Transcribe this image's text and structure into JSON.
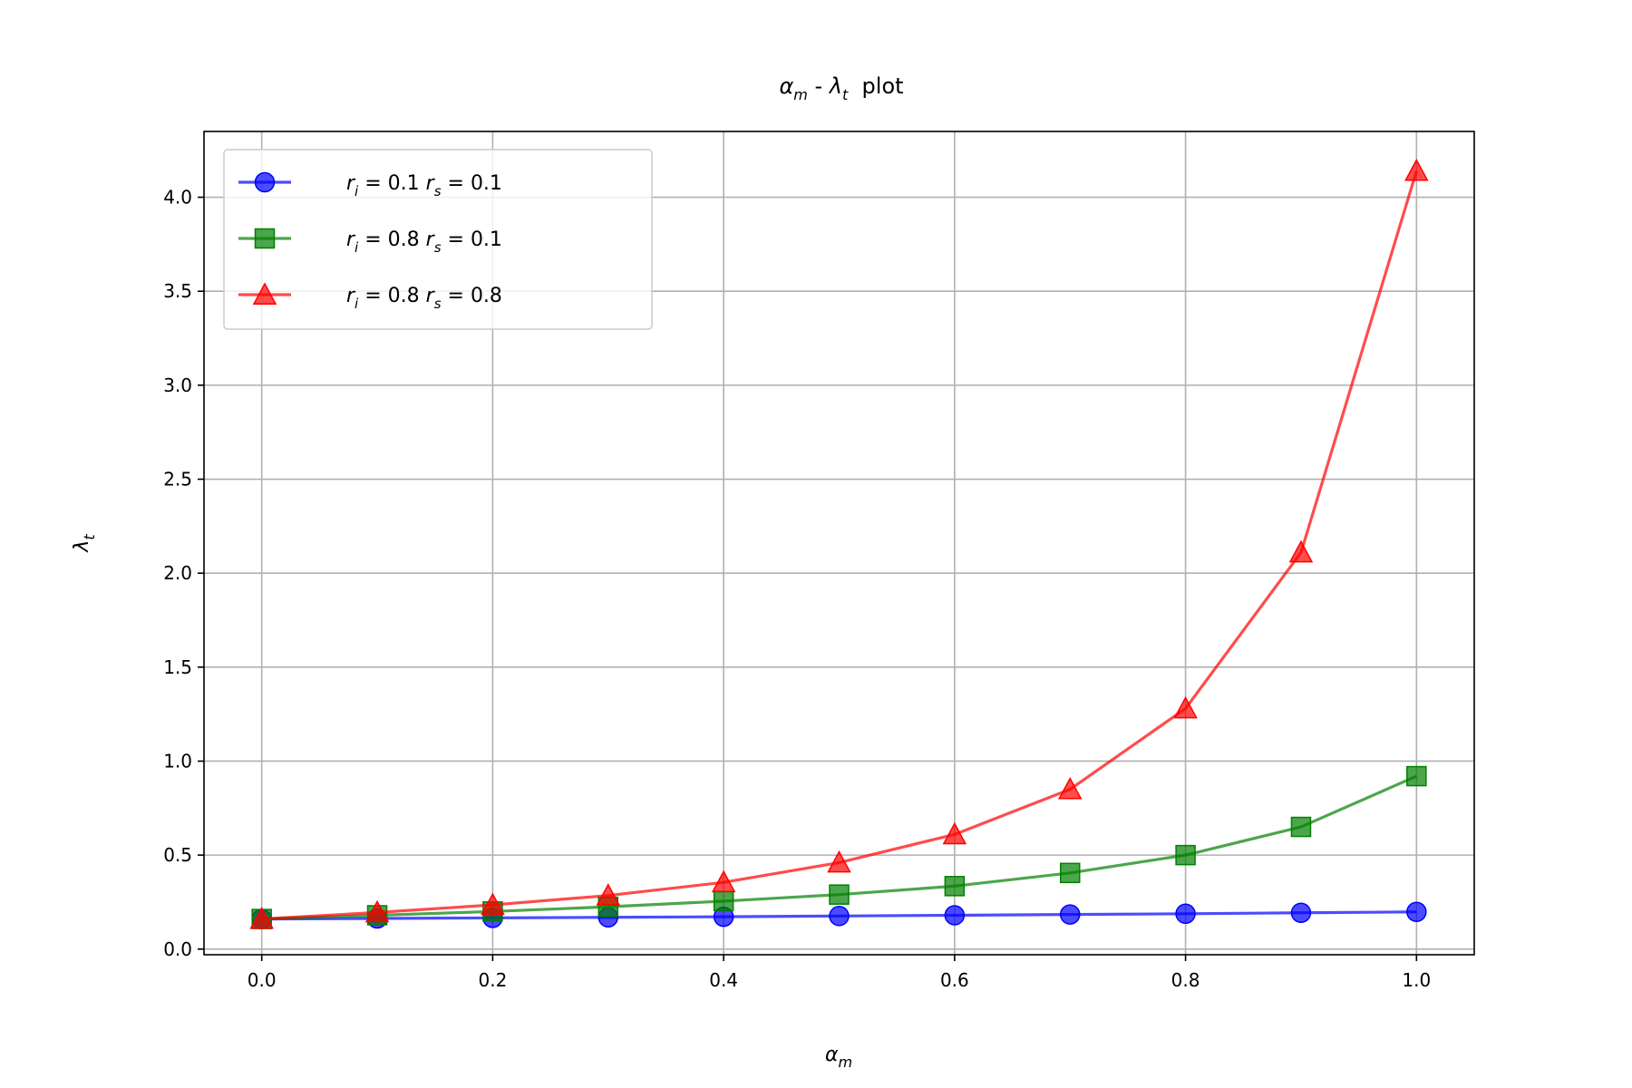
{
  "chart_data": {
    "type": "line",
    "title": {
      "a_sym": "α",
      "a_sub": "m",
      "sep": " - ",
      "b_sym": "λ",
      "b_sub": "t",
      "tail": "  plot"
    },
    "xlabel": {
      "sym": "α",
      "sub": "m"
    },
    "ylabel": {
      "sym": "λ",
      "sub": "t"
    },
    "x": [
      0.0,
      0.1,
      0.2,
      0.3,
      0.4,
      0.5,
      0.6,
      0.7,
      0.8,
      0.9,
      1.0
    ],
    "xlim": [
      -0.05,
      1.05
    ],
    "ylim": [
      -0.03,
      4.35
    ],
    "xticks": [
      "0.0",
      "0.2",
      "0.4",
      "0.6",
      "0.8",
      "1.0"
    ],
    "yticks": [
      "0.0",
      "0.5",
      "1.0",
      "1.5",
      "2.0",
      "2.5",
      "3.0",
      "3.5",
      "4.0"
    ],
    "grid": true,
    "legend_position": "upper-left",
    "series": [
      {
        "label": {
          "ri": "0.1",
          "rs": "0.1"
        },
        "color": "#0000ff",
        "marker": "circle",
        "values": [
          0.16,
          0.163,
          0.166,
          0.169,
          0.172,
          0.176,
          0.18,
          0.184,
          0.188,
          0.193,
          0.198
        ]
      },
      {
        "label": {
          "ri": "0.8",
          "rs": "0.1"
        },
        "color": "#008000",
        "marker": "square",
        "values": [
          0.16,
          0.18,
          0.2,
          0.225,
          0.255,
          0.29,
          0.335,
          0.405,
          0.5,
          0.65,
          0.92
        ]
      },
      {
        "label": {
          "ri": "0.8",
          "rs": "0.8"
        },
        "color": "#ff0000",
        "marker": "triangle",
        "values": [
          0.16,
          0.195,
          0.235,
          0.285,
          0.355,
          0.46,
          0.61,
          0.85,
          1.28,
          2.11,
          4.14
        ]
      }
    ]
  }
}
